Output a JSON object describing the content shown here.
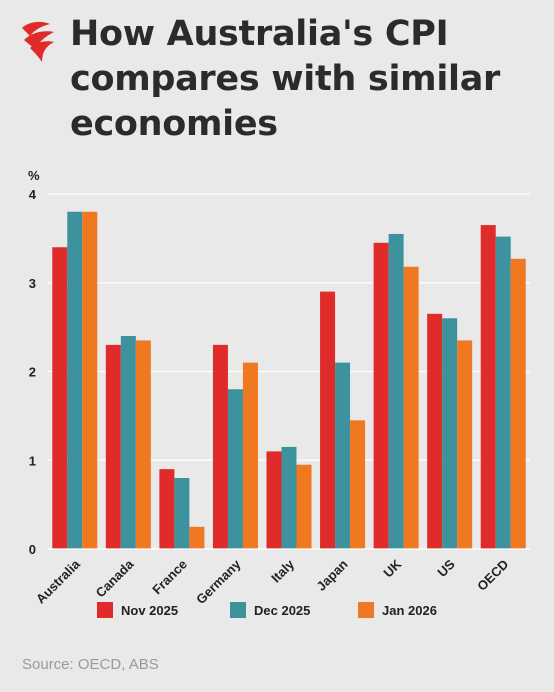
{
  "title": "How Australia's CPI compares with similar economies",
  "source": "Source: OECD, ABS",
  "logo_name": "sbs-logo",
  "chart_data": {
    "type": "bar",
    "title": "How Australia's CPI compares with similar economies",
    "ylabel": "%",
    "xlabel": "",
    "ylim": [
      0,
      4
    ],
    "yticks": [
      0,
      1,
      2,
      3,
      4
    ],
    "grid": true,
    "legend_position": "bottom",
    "categories": [
      "Australia",
      "Canada",
      "France",
      "Germany",
      "Italy",
      "Japan",
      "UK",
      "US",
      "OECD"
    ],
    "series": [
      {
        "name": "Nov 2025",
        "color": "#e02b2b",
        "values": [
          3.4,
          2.3,
          0.9,
          2.3,
          1.1,
          2.9,
          3.45,
          2.65,
          3.65
        ]
      },
      {
        "name": "Dec 2025",
        "color": "#3d929d",
        "values": [
          3.8,
          2.4,
          0.8,
          1.8,
          1.15,
          2.1,
          3.55,
          2.6,
          3.52
        ]
      },
      {
        "name": "Jan 2026",
        "color": "#f07820",
        "values": [
          3.8,
          2.35,
          0.25,
          2.1,
          0.95,
          1.45,
          3.18,
          2.35,
          3.27
        ]
      }
    ]
  }
}
